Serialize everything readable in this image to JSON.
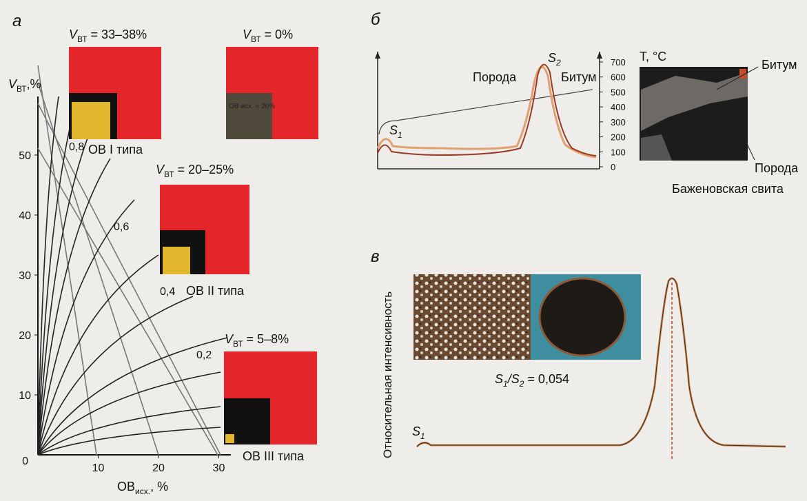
{
  "panel_a": {
    "letter": "а",
    "y_axis_label": {
      "symbol": "V",
      "sub": "ВТ",
      "unit": ",%"
    },
    "x_axis_label": {
      "symbol": "ОВ",
      "sub": "исх.",
      "unit": ", %"
    },
    "yticks": [
      0,
      10,
      20,
      30,
      40,
      50
    ],
    "xticks": [
      10,
      20,
      30
    ],
    "curve_labels": [
      "0,8",
      "0,6",
      "0,4",
      "0,2"
    ],
    "insets": [
      {
        "symbol": "V",
        "sub": "ВТ",
        "value": " = 33–38%",
        "caption": "ОВ I типа"
      },
      {
        "symbol": "V",
        "sub": "ВТ",
        "value": " = 0%",
        "note": "ОВ исх. = 20%"
      },
      {
        "symbol": "V",
        "sub": "ВТ",
        "value": " = 20–25%",
        "caption": "ОВ II типа"
      },
      {
        "symbol": "V",
        "sub": "ВТ",
        "value": " = 5–8%",
        "caption": "ОВ III типа"
      }
    ]
  },
  "panel_b": {
    "letter": "б",
    "s1": {
      "symbol": "S",
      "sub": "1"
    },
    "s2": {
      "symbol": "S",
      "sub": "2"
    },
    "series_labels": [
      "Порода",
      "Битум"
    ],
    "right_axis": {
      "label": "T, °C",
      "ticks": [
        0,
        100,
        200,
        300,
        400,
        500,
        600,
        700
      ]
    },
    "photo_labels": [
      "Битум",
      "Порода"
    ],
    "photo_caption": "Баженовская свита"
  },
  "panel_c": {
    "letter": "в",
    "y_axis_label": "Относительная интенсивность",
    "ratio": {
      "s1": "S",
      "s1_sub": "1",
      "slash": "/",
      "s2": "S",
      "s2_sub": "2",
      "value": " = 0,054"
    },
    "s1": {
      "symbol": "S",
      "sub": "1"
    }
  }
}
